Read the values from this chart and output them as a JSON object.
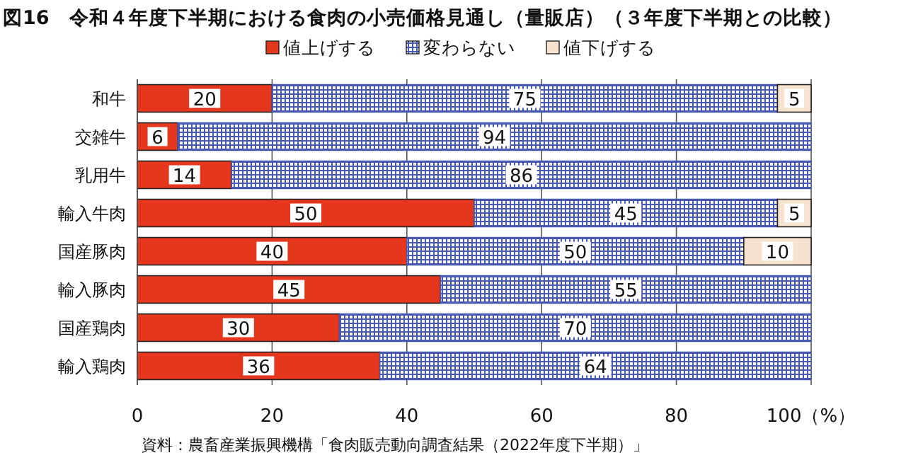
{
  "chart_data": {
    "type": "bar",
    "orientation": "horizontal",
    "stacked": true,
    "title": "図16　令和４年度下半期における食肉の小売価格見通し（量販店）（３年度下半期との比較）",
    "categories": [
      "和牛",
      "交雑牛",
      "乳用牛",
      "輸入牛肉",
      "国産豚肉",
      "輸入豚肉",
      "国産鶏肉",
      "輸入鶏肉"
    ],
    "series": [
      {
        "name": "値上げする",
        "color": "#e5371d",
        "values": [
          20,
          6,
          14,
          50,
          40,
          45,
          30,
          36
        ]
      },
      {
        "name": "変わらない",
        "color": "#4658b0",
        "values": [
          75,
          94,
          86,
          45,
          50,
          55,
          70,
          64
        ]
      },
      {
        "name": "値下げする",
        "color": "#f7e2cf",
        "values": [
          5,
          null,
          null,
          5,
          10,
          null,
          null,
          null
        ]
      }
    ],
    "xlim": [
      0,
      100
    ],
    "xticks": [
      0,
      20,
      40,
      60,
      80,
      {
        "value": 100,
        "label": "100（%）"
      }
    ],
    "grid": "x",
    "legend": "top",
    "data_labels": true,
    "annotations": [
      "資料：農畜産業振興機構「食肉販売動向調査結果（2022年度下半期）」"
    ]
  }
}
